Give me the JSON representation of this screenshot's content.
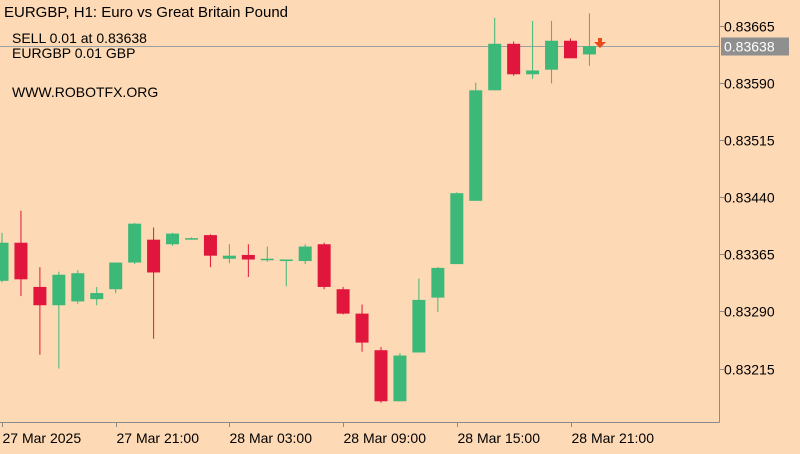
{
  "header": {
    "symbol_title": "EURGBP, H1:  Euro vs Great Britain Pound",
    "order_line": "SELL 0.01 at 0.83638",
    "position_line": "EURGBP 0.01 GBP",
    "watermark": "WWW.ROBOTFX.ORG"
  },
  "colors": {
    "background": "#fdd9b5",
    "bull": "#3cb878",
    "bear": "#e0163c",
    "wick": "#3cb878",
    "grid_border": "#8a8a8a",
    "price_line": "#a0a0a0",
    "price_tag_bg": "#8f8f8f",
    "sell_arrow": "#e84a1c",
    "doji_cross": "#7fc87a"
  },
  "chart_data": {
    "type": "candlestick",
    "symbol": "EURGBP",
    "timeframe": "H1",
    "current_price": 0.83638,
    "current_price_label": "0.83638",
    "y_range": [
      0.83162,
      0.83695
    ],
    "y_ticks": [
      {
        "value": 0.83665,
        "label": "0.83665"
      },
      {
        "value": 0.8359,
        "label": "0.83590"
      },
      {
        "value": 0.83515,
        "label": "0.83515"
      },
      {
        "value": 0.8344,
        "label": "0.83440"
      },
      {
        "value": 0.83365,
        "label": "0.83365"
      },
      {
        "value": 0.8329,
        "label": "0.83290"
      },
      {
        "value": 0.83215,
        "label": "0.83215"
      }
    ],
    "x_ticks": [
      {
        "index": 0,
        "label": "27 Mar 2025"
      },
      {
        "index": 6,
        "label": "27 Mar 21:00"
      },
      {
        "index": 12,
        "label": "28 Mar 03:00"
      },
      {
        "index": 18,
        "label": "28 Mar 09:00"
      },
      {
        "index": 24,
        "label": "28 Mar 15:00"
      },
      {
        "index": 30,
        "label": "28 Mar 21:00"
      }
    ],
    "candles": [
      {
        "o": 0.8333,
        "h": 0.83393,
        "l": 0.83328,
        "c": 0.8338
      },
      {
        "o": 0.8338,
        "h": 0.83422,
        "l": 0.8331,
        "c": 0.83332
      },
      {
        "o": 0.83322,
        "h": 0.83348,
        "l": 0.83233,
        "c": 0.83298
      },
      {
        "o": 0.83298,
        "h": 0.83342,
        "l": 0.83215,
        "c": 0.83338
      },
      {
        "o": 0.83303,
        "h": 0.83344,
        "l": 0.833,
        "c": 0.8334
      },
      {
        "o": 0.83306,
        "h": 0.83322,
        "l": 0.83298,
        "c": 0.83314
      },
      {
        "o": 0.83319,
        "h": 0.83354,
        "l": 0.83314,
        "c": 0.83354
      },
      {
        "o": 0.83354,
        "h": 0.83406,
        "l": 0.83352,
        "c": 0.83405
      },
      {
        "o": 0.83384,
        "h": 0.834,
        "l": 0.83254,
        "c": 0.83341
      },
      {
        "o": 0.83378,
        "h": 0.83393,
        "l": 0.83376,
        "c": 0.83392
      },
      {
        "o": 0.83385,
        "h": 0.83387,
        "l": 0.83384,
        "c": 0.83386
      },
      {
        "o": 0.8339,
        "h": 0.83391,
        "l": 0.83348,
        "c": 0.83363
      },
      {
        "o": 0.83359,
        "h": 0.83378,
        "l": 0.83353,
        "c": 0.83363
      },
      {
        "o": 0.83364,
        "h": 0.83378,
        "l": 0.83335,
        "c": 0.83358
      },
      {
        "o": 0.83357,
        "h": 0.83375,
        "l": 0.83355,
        "c": 0.83359
      },
      {
        "o": 0.83356,
        "h": 0.83358,
        "l": 0.83323,
        "c": 0.83358
      },
      {
        "o": 0.83356,
        "h": 0.83378,
        "l": 0.83352,
        "c": 0.83375
      },
      {
        "o": 0.83378,
        "h": 0.8338,
        "l": 0.83319,
        "c": 0.83322
      },
      {
        "o": 0.83319,
        "h": 0.83322,
        "l": 0.83286,
        "c": 0.83287
      },
      {
        "o": 0.83287,
        "h": 0.83299,
        "l": 0.83237,
        "c": 0.83249
      },
      {
        "o": 0.83239,
        "h": 0.83243,
        "l": 0.8317,
        "c": 0.83172
      },
      {
        "o": 0.83172,
        "h": 0.83235,
        "l": 0.83172,
        "c": 0.83232
      },
      {
        "o": 0.83236,
        "h": 0.83333,
        "l": 0.83236,
        "c": 0.83305
      },
      {
        "o": 0.83308,
        "h": 0.83348,
        "l": 0.83289,
        "c": 0.83347
      },
      {
        "o": 0.83352,
        "h": 0.83446,
        "l": 0.83352,
        "c": 0.83445
      },
      {
        "o": 0.83435,
        "h": 0.8359,
        "l": 0.83435,
        "c": 0.8358
      },
      {
        "o": 0.8358,
        "h": 0.83675,
        "l": 0.8358,
        "c": 0.83641
      },
      {
        "o": 0.83641,
        "h": 0.83644,
        "l": 0.83599,
        "c": 0.83601
      },
      {
        "o": 0.83601,
        "h": 0.83671,
        "l": 0.83595,
        "c": 0.83606
      },
      {
        "o": 0.83607,
        "h": 0.83671,
        "l": 0.83589,
        "c": 0.83645
      },
      {
        "o": 0.83645,
        "h": 0.83648,
        "l": 0.83622,
        "c": 0.83622
      },
      {
        "o": 0.83627,
        "h": 0.83681,
        "l": 0.83612,
        "c": 0.83638
      }
    ]
  }
}
